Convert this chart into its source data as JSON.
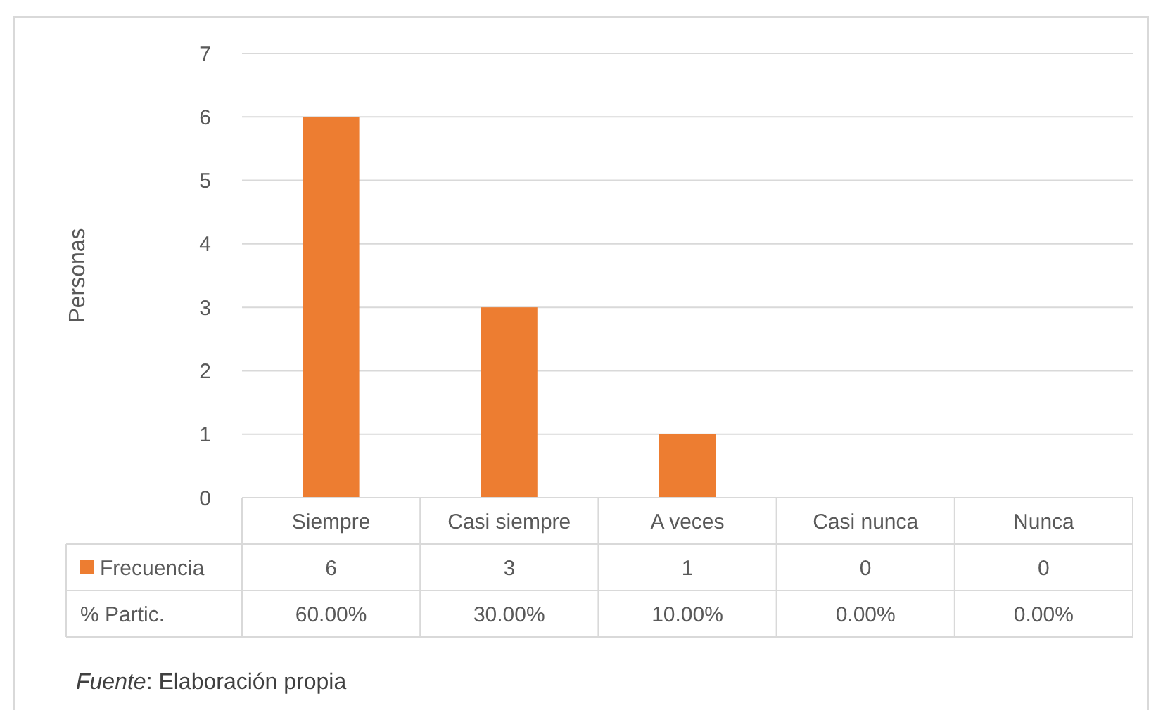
{
  "chart_data": {
    "type": "bar",
    "ylabel": "Personas",
    "categories": [
      "Siempre",
      "Casi siempre",
      "A veces",
      "Casi nunca",
      "Nunca"
    ],
    "series": [
      {
        "name": "Frecuencia",
        "color": "#ed7d31",
        "values": [
          6,
          3,
          1,
          0,
          0
        ]
      }
    ],
    "ylim": [
      0,
      7
    ],
    "yticks": [
      0,
      1,
      2,
      3,
      4,
      5,
      6,
      7
    ],
    "grid": "y",
    "legend": "bottom",
    "data_labels": true,
    "annotations": [
      "% Partic.",
      "60.00%",
      "30.00%",
      "10.00%",
      "0.00%",
      "0.00%",
      "Fuente: Elaboración propia"
    ]
  }
}
